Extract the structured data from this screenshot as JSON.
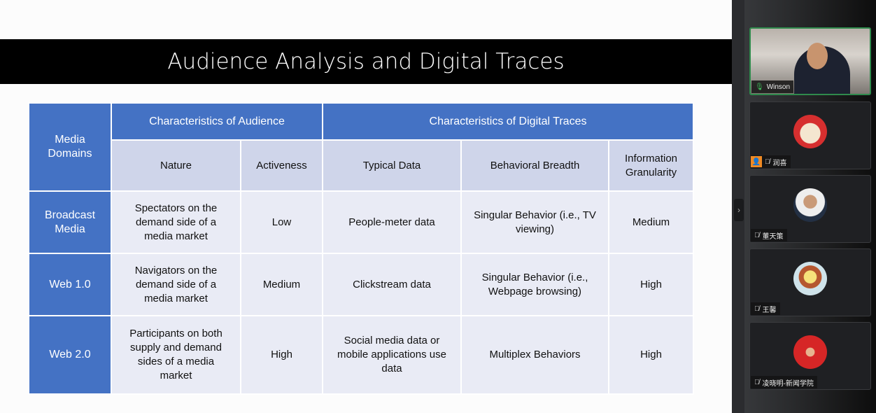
{
  "slide": {
    "title": "Audience Analysis and Digital Traces",
    "table": {
      "corner": "Media Domains",
      "groups": [
        "Characteristics of Audience",
        "Characteristics of Digital Traces"
      ],
      "columns": [
        "Nature",
        "Activeness",
        "Typical Data",
        "Behavioral Breadth",
        "Information Granularity"
      ],
      "rows": [
        {
          "domain": "Broadcast Media",
          "cells": [
            "Spectators on the demand side of a media market",
            "Low",
            "People-meter data",
            "Singular Behavior (i.e., TV viewing)",
            "Medium"
          ]
        },
        {
          "domain": "Web 1.0",
          "cells": [
            "Navigators on the demand side of a media market",
            "Medium",
            "Clickstream data",
            "Singular Behavior (i.e., Webpage browsing)",
            "High"
          ]
        },
        {
          "domain": "Web 2.0",
          "cells": [
            "Participants on both supply and demand sides of a media market",
            "High",
            "Social media data or mobile applications use data",
            "Multiplex Behaviors",
            "High"
          ]
        }
      ]
    },
    "colors": {
      "header": "#4472c4",
      "subheader": "#cfd5ea",
      "body": "#e9ebf5"
    }
  },
  "participants": [
    {
      "name": "Winson",
      "mic": "mic-on",
      "video": true
    },
    {
      "name": "润喜",
      "mic": "mic-muted",
      "host_badge": true
    },
    {
      "name": "董天策",
      "mic": "mic-muted"
    },
    {
      "name": "王馨",
      "mic": "mic-muted"
    },
    {
      "name": "凌晓明-新闻学院",
      "mic": "mic-muted"
    }
  ]
}
